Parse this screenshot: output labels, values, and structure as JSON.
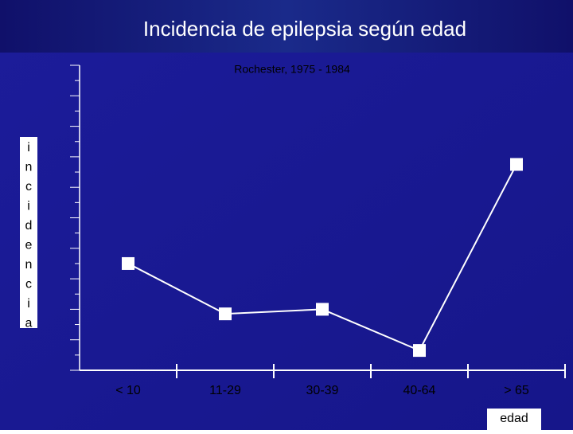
{
  "chart_data": {
    "type": "line",
    "title": "Incidencia de epilepsia según edad",
    "subtitle": "Rochester, 1975 - 1984",
    "y_label": "incidencia",
    "x_label": "edad",
    "categories": [
      "< 10",
      "11-29",
      "30-39",
      "40-64",
      "> 65"
    ],
    "values": [
      3.5,
      1.85,
      2.0,
      0.65,
      6.75
    ],
    "color": "#ffffff",
    "ylim": [
      0,
      10
    ],
    "yticks": [
      0,
      1,
      2,
      3,
      4,
      5,
      6,
      7,
      8,
      9,
      10
    ]
  }
}
